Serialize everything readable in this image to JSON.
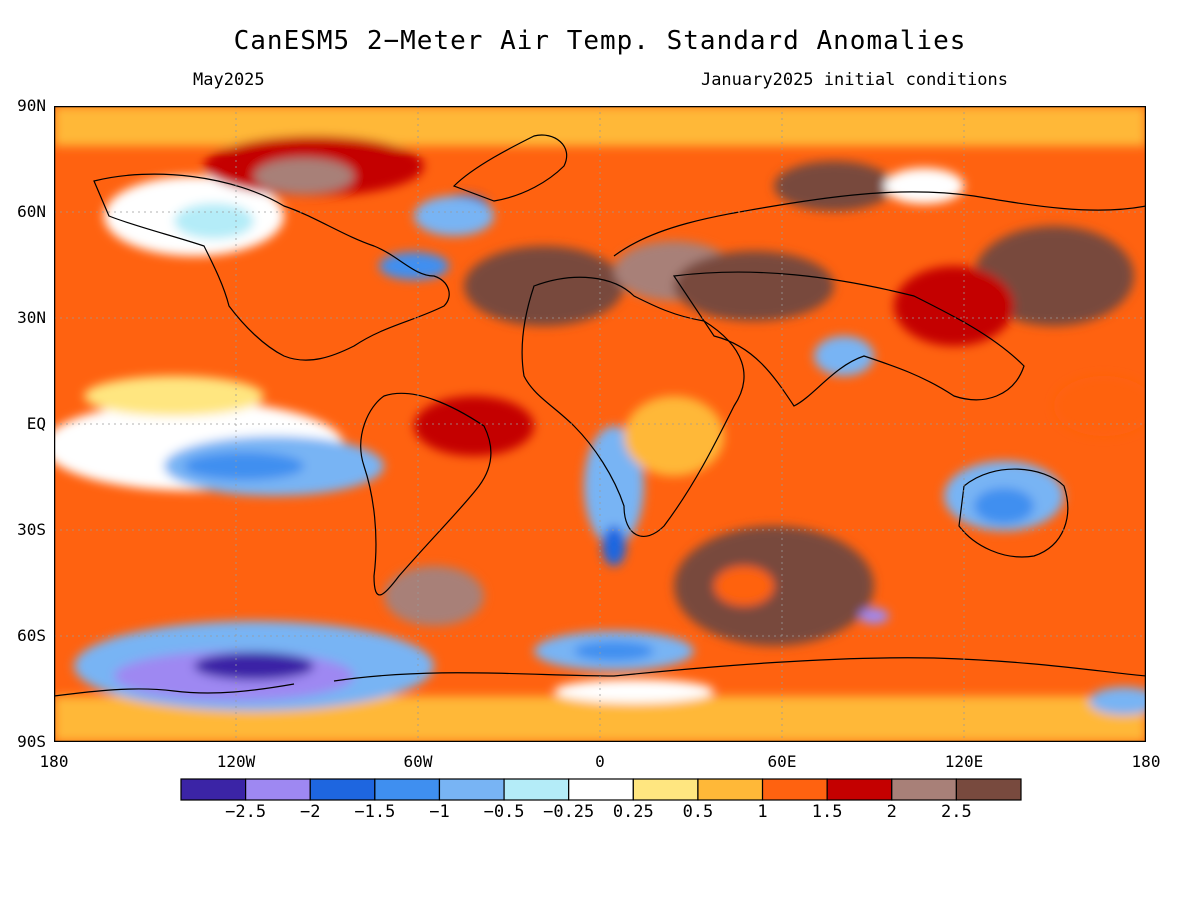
{
  "title": "CanESM5 2−Meter Air Temp. Standard Anomalies",
  "valid_month": "May2025",
  "init_conditions": "January2025 initial conditions",
  "lat_labels": [
    "90N",
    "60N",
    "30N",
    "EQ",
    "30S",
    "60S",
    "90S"
  ],
  "lon_labels": [
    "180",
    "120W",
    "60W",
    "0",
    "60E",
    "120E",
    "180"
  ],
  "colorbar": {
    "colors": [
      "#3b24a6",
      "#9e88f2",
      "#1e66e0",
      "#3f8ff0",
      "#78b4f4",
      "#b4ecf8",
      "#ffffff",
      "#ffe680",
      "#ffb838",
      "#ff6210",
      "#c40000",
      "#a88078",
      "#784a3e"
    ],
    "labels": [
      "−2.5",
      "−2",
      "−1.5",
      "−1",
      "−0.5",
      "−0.25",
      "0.25",
      "0.5",
      "1",
      "1.5",
      "2",
      "2.5"
    ]
  }
}
